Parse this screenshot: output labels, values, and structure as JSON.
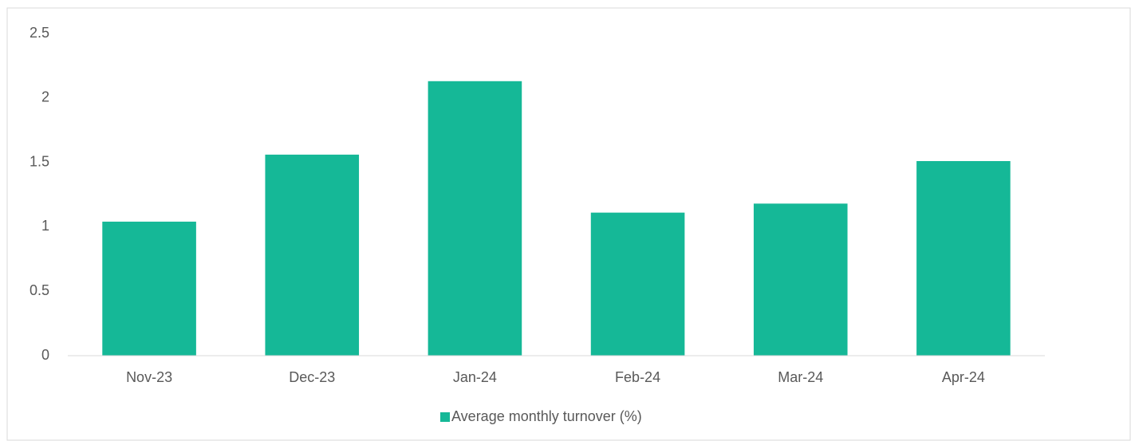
{
  "chart_data": {
    "type": "bar",
    "categories": [
      "Nov-23",
      "Dec-23",
      "Jan-24",
      "Feb-24",
      "Mar-24",
      "Apr-24"
    ],
    "series": [
      {
        "name": "Average monthly turnover (%)",
        "color": "#15b897",
        "values": [
          1.04,
          1.56,
          2.13,
          1.11,
          1.18,
          1.51
        ]
      }
    ],
    "ylim": [
      0,
      2.5
    ],
    "yticks": [
      0,
      0.5,
      1,
      1.5,
      2,
      2.5
    ],
    "grid": false,
    "legend": "bottom"
  }
}
